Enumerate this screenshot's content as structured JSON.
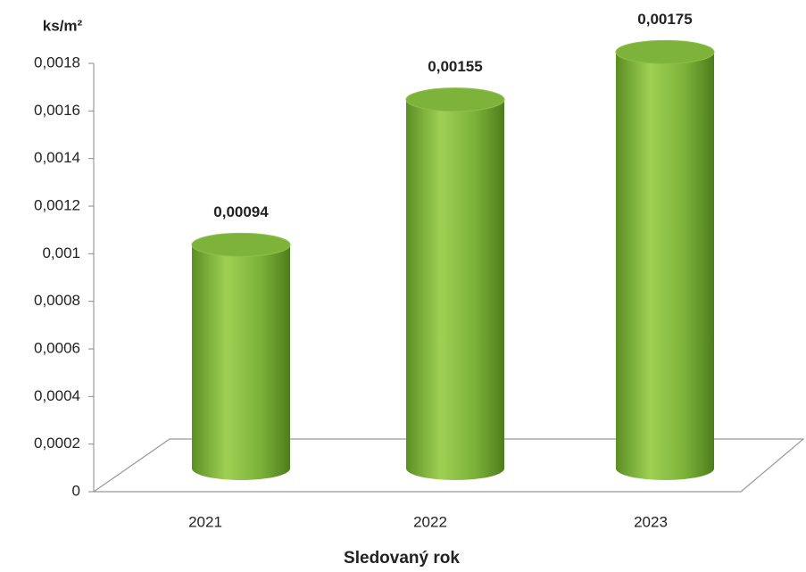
{
  "chart_data": {
    "type": "bar",
    "y_axis_label": "ks/m²",
    "x_axis_label": "Sledovaný rok",
    "categories": [
      "2021",
      "2022",
      "2023"
    ],
    "values": [
      0.00094,
      0.00155,
      0.00175
    ],
    "value_labels": [
      "0,00094",
      "0,00155",
      "0,00175"
    ],
    "color": "#7db33a",
    "ylim": [
      0,
      0.0018
    ],
    "yticks": [
      0,
      {
        "value": 0.0002,
        "label": "0,0002"
      },
      {
        "value": 0.0004,
        "label": "0,0004"
      },
      {
        "value": 0.0006,
        "label": "0,0006"
      },
      {
        "value": 0.0008,
        "label": "0,0008"
      },
      {
        "value": 0.001,
        "label": "0,001"
      },
      {
        "value": 0.0012,
        "label": "0,0012"
      },
      {
        "value": 0.0014,
        "label": "0,0014"
      },
      {
        "value": 0.0016,
        "label": "0,0016"
      },
      {
        "value": 0.0018,
        "label": "0,0018"
      }
    ],
    "grid": false
  }
}
